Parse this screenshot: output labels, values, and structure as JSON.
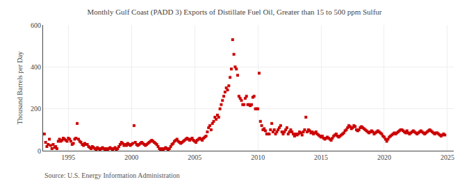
{
  "chart_data": {
    "type": "scatter",
    "title": "Monthly Gulf Coast (PADD 3) Exports of Distillate Fuel Oil, Greater than 15 to 500 ppm Sulfur",
    "ylabel": "Thousand Barrels per Day",
    "annotations": [
      "Source: U.S. Energy Information Administration"
    ],
    "color": "#cc0000",
    "marker": "square",
    "grid": true,
    "xlim": [
      1993.0,
      2025.5
    ],
    "ylim": [
      0,
      600
    ],
    "xticks": [
      1995,
      2000,
      2005,
      2010,
      2015,
      2020,
      2025
    ],
    "yticks": [
      0,
      200,
      400,
      600
    ],
    "x": [
      1993.1,
      1993.2,
      1993.3,
      1993.4,
      1993.5,
      1993.6,
      1993.7,
      1993.8,
      1993.9,
      1994.0,
      1994.1,
      1994.2,
      1994.3,
      1994.4,
      1994.5,
      1994.6,
      1994.7,
      1994.8,
      1994.9,
      1995.0,
      1995.1,
      1995.2,
      1995.3,
      1995.4,
      1995.5,
      1995.6,
      1995.7,
      1995.8,
      1995.9,
      1996.0,
      1996.1,
      1996.2,
      1996.3,
      1996.4,
      1996.5,
      1996.6,
      1996.7,
      1996.8,
      1996.9,
      1997.0,
      1997.1,
      1997.2,
      1997.3,
      1997.4,
      1997.5,
      1997.6,
      1997.7,
      1997.8,
      1997.9,
      1998.0,
      1998.1,
      1998.2,
      1998.3,
      1998.4,
      1998.5,
      1998.6,
      1998.7,
      1998.8,
      1998.9,
      1999.0,
      1999.1,
      1999.2,
      1999.3,
      1999.4,
      1999.5,
      1999.6,
      1999.7,
      1999.8,
      1999.9,
      2000.0,
      2000.1,
      2000.2,
      2000.3,
      2000.4,
      2000.5,
      2000.6,
      2000.7,
      2000.8,
      2000.9,
      2001.0,
      2001.1,
      2001.2,
      2001.3,
      2001.4,
      2001.5,
      2001.6,
      2001.7,
      2001.8,
      2001.9,
      2002.0,
      2002.1,
      2002.2,
      2002.3,
      2002.4,
      2002.5,
      2002.6,
      2002.7,
      2002.8,
      2002.9,
      2003.0,
      2003.1,
      2003.2,
      2003.3,
      2003.4,
      2003.5,
      2003.6,
      2003.7,
      2003.8,
      2003.9,
      2004.0,
      2004.1,
      2004.2,
      2004.3,
      2004.4,
      2004.5,
      2004.6,
      2004.7,
      2004.8,
      2004.9,
      2005.0,
      2005.1,
      2005.2,
      2005.3,
      2005.4,
      2005.5,
      2005.6,
      2005.7,
      2005.8,
      2005.9,
      2006.0,
      2006.1,
      2006.2,
      2006.3,
      2006.4,
      2006.5,
      2006.6,
      2006.7,
      2006.8,
      2006.9,
      2007.0,
      2007.1,
      2007.2,
      2007.3,
      2007.4,
      2007.5,
      2007.6,
      2007.7,
      2007.8,
      2007.9,
      2008.0,
      2008.1,
      2008.2,
      2008.3,
      2008.4,
      2008.5,
      2008.6,
      2008.7,
      2008.8,
      2008.9,
      2009.0,
      2009.1,
      2009.2,
      2009.3,
      2009.4,
      2009.5,
      2009.6,
      2009.7,
      2009.8,
      2009.9,
      2010.0,
      2010.1,
      2010.2,
      2010.3,
      2010.4,
      2010.5,
      2010.6,
      2010.7,
      2010.8,
      2010.9,
      2011.0,
      2011.1,
      2011.2,
      2011.3,
      2011.4,
      2011.5,
      2011.6,
      2011.7,
      2011.8,
      2011.9,
      2012.0,
      2012.1,
      2012.2,
      2012.3,
      2012.4,
      2012.5,
      2012.6,
      2012.7,
      2012.8,
      2012.9,
      2013.0,
      2013.1,
      2013.2,
      2013.3,
      2013.4,
      2013.5,
      2013.6,
      2013.7,
      2013.8,
      2013.9,
      2014.0,
      2014.1,
      2014.2,
      2014.3,
      2014.4,
      2014.5,
      2014.6,
      2014.7,
      2014.8,
      2014.9,
      2015.0,
      2015.1,
      2015.2,
      2015.3,
      2015.4,
      2015.5,
      2015.6,
      2015.7,
      2015.8,
      2015.9,
      2016.0,
      2016.1,
      2016.2,
      2016.3,
      2016.4,
      2016.5,
      2016.6,
      2016.7,
      2016.8,
      2016.9,
      2017.0,
      2017.1,
      2017.2,
      2017.3,
      2017.4,
      2017.5,
      2017.6,
      2017.7,
      2017.8,
      2017.9,
      2018.0,
      2018.1,
      2018.2,
      2018.3,
      2018.4,
      2018.5,
      2018.6,
      2018.7,
      2018.8,
      2018.9,
      2019.0,
      2019.1,
      2019.2,
      2019.3,
      2019.4,
      2019.5,
      2019.6,
      2019.7,
      2019.8,
      2019.9,
      2020.0,
      2020.1,
      2020.2,
      2020.3,
      2020.4,
      2020.5,
      2020.6,
      2020.7,
      2020.8,
      2020.9,
      2021.0,
      2021.1,
      2021.2,
      2021.3,
      2021.4,
      2021.5,
      2021.6,
      2021.7,
      2021.8,
      2021.9,
      2022.0,
      2022.1,
      2022.2,
      2022.3,
      2022.4,
      2022.5,
      2022.6,
      2022.7,
      2022.8,
      2022.9,
      2023.0,
      2023.1,
      2023.2,
      2023.3,
      2023.4,
      2023.5,
      2023.6,
      2023.7,
      2023.8,
      2023.9,
      2024.0,
      2024.1,
      2024.2,
      2024.3,
      2024.4,
      2024.5,
      2024.6,
      2024.7,
      2024.8
    ],
    "values": [
      80,
      40,
      20,
      30,
      55,
      25,
      10,
      30,
      15,
      20,
      10,
      45,
      55,
      45,
      50,
      60,
      55,
      50,
      45,
      60,
      55,
      45,
      30,
      35,
      55,
      60,
      130,
      55,
      45,
      40,
      30,
      25,
      35,
      30,
      30,
      20,
      15,
      10,
      20,
      15,
      10,
      5,
      15,
      10,
      5,
      10,
      15,
      10,
      5,
      10,
      5,
      10,
      15,
      10,
      5,
      10,
      15,
      5,
      10,
      20,
      30,
      40,
      35,
      25,
      30,
      25,
      35,
      30,
      25,
      30,
      35,
      120,
      40,
      30,
      25,
      30,
      35,
      40,
      35,
      30,
      25,
      30,
      35,
      40,
      45,
      50,
      45,
      40,
      35,
      30,
      20,
      10,
      5,
      10,
      5,
      10,
      15,
      10,
      5,
      10,
      20,
      30,
      35,
      45,
      50,
      55,
      45,
      40,
      35,
      40,
      45,
      50,
      55,
      60,
      55,
      50,
      55,
      60,
      50,
      45,
      40,
      50,
      55,
      60,
      55,
      50,
      60,
      65,
      70,
      90,
      110,
      120,
      100,
      130,
      140,
      160,
      150,
      170,
      160,
      200,
      220,
      240,
      260,
      280,
      300,
      290,
      310,
      350,
      390,
      530,
      460,
      400,
      390,
      360,
      260,
      250,
      240,
      220,
      220,
      250,
      260,
      220,
      220,
      215,
      220,
      255,
      260,
      200,
      200,
      200,
      370,
      140,
      120,
      100,
      105,
      95,
      80,
      80,
      80,
      100,
      130,
      90,
      100,
      80,
      90,
      100,
      110,
      120,
      90,
      80,
      90,
      100,
      110,
      80,
      90,
      100,
      90,
      80,
      70,
      80,
      75,
      80,
      90,
      85,
      75,
      90,
      100,
      160,
      90,
      100,
      95,
      85,
      90,
      80,
      85,
      90,
      80,
      75,
      70,
      65,
      70,
      60,
      55,
      60,
      65,
      60,
      55,
      50,
      60,
      70,
      75,
      80,
      70,
      65,
      70,
      75,
      80,
      85,
      95,
      100,
      110,
      120,
      115,
      105,
      110,
      120,
      115,
      100,
      95,
      100,
      110,
      115,
      110,
      105,
      100,
      95,
      90,
      85,
      90,
      95,
      90,
      80,
      85,
      90,
      95,
      90,
      85,
      80,
      70,
      65,
      55,
      45,
      55,
      65,
      70,
      75,
      80,
      85,
      80,
      85,
      90,
      95,
      100,
      100,
      95,
      90,
      85,
      95,
      85,
      80,
      85,
      90,
      95,
      90,
      85,
      80,
      85,
      90,
      95,
      90,
      85,
      80,
      85,
      90,
      95,
      100,
      95,
      90,
      85,
      80,
      85,
      85,
      80,
      75,
      70,
      75,
      80,
      75
    ]
  }
}
